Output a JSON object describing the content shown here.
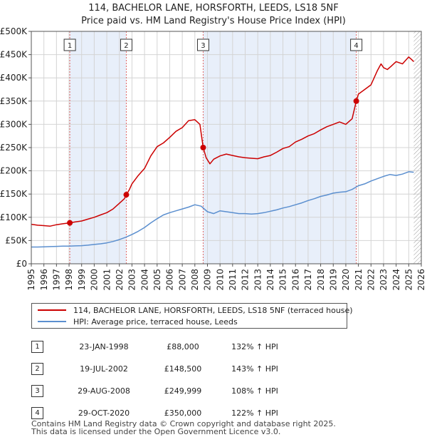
{
  "chart_data": {
    "type": "line",
    "title": "114, BACHELOR LANE, HORSFORTH, LEEDS, LS18 5NF",
    "subtitle": "Price paid vs. HM Land Registry's House Price Index (HPI)",
    "xlabel": "",
    "ylabel": "",
    "xlim": [
      1995,
      2026
    ],
    "ylim": [
      0,
      500000
    ],
    "x_ticks": [
      1995,
      1996,
      1997,
      1998,
      1999,
      2000,
      2001,
      2002,
      2003,
      2004,
      2005,
      2006,
      2007,
      2008,
      2009,
      2010,
      2011,
      2012,
      2013,
      2014,
      2015,
      2016,
      2017,
      2018,
      2019,
      2020,
      2021,
      2022,
      2023,
      2024,
      2025,
      2026
    ],
    "x_tick_labels": [
      "1995",
      "1996",
      "1997",
      "1998",
      "1999",
      "2000",
      "2001",
      "2002",
      "2003",
      "2004",
      "2005",
      "2006",
      "2007",
      "2008",
      "2009",
      "2010",
      "2011",
      "2012",
      "2013",
      "2014",
      "2015",
      "2016",
      "2017",
      "2018",
      "2019",
      "2020",
      "2021",
      "2022",
      "2023",
      "2024",
      "2025",
      "2026"
    ],
    "y_ticks": [
      0,
      50000,
      100000,
      150000,
      200000,
      250000,
      300000,
      350000,
      400000,
      450000,
      500000
    ],
    "y_tick_labels": [
      "£0",
      "£50K",
      "£100K",
      "£150K",
      "£200K",
      "£250K",
      "£300K",
      "£350K",
      "£400K",
      "£450K",
      "£500K"
    ],
    "grid": true,
    "shaded_periods": [
      [
        1998.06,
        2002.55
      ],
      [
        2008.66,
        2020.83
      ]
    ],
    "data_end": 2025.4,
    "series": [
      {
        "name": "114, BACHELOR LANE, HORSFORTH, LEEDS, LS18 5NF (terraced house)",
        "color": "#cc0000",
        "x": [
          1995.0,
          1995.5,
          1996.0,
          1996.5,
          1997.0,
          1997.5,
          1998.06,
          1998.5,
          1999.0,
          1999.5,
          2000.0,
          2000.5,
          2001.0,
          2001.5,
          2002.0,
          2002.4,
          2002.55,
          2002.8,
          2003.0,
          2003.5,
          2004.0,
          2004.5,
          2005.0,
          2005.5,
          2006.0,
          2006.5,
          2007.0,
          2007.5,
          2008.0,
          2008.4,
          2008.66,
          2008.9,
          2009.2,
          2009.5,
          2010.0,
          2010.5,
          2011.0,
          2011.5,
          2012.0,
          2012.5,
          2013.0,
          2013.5,
          2014.0,
          2014.5,
          2015.0,
          2015.5,
          2016.0,
          2016.5,
          2017.0,
          2017.5,
          2018.0,
          2018.5,
          2019.0,
          2019.5,
          2020.0,
          2020.5,
          2020.83,
          2021.0,
          2021.5,
          2022.0,
          2022.5,
          2022.8,
          2023.0,
          2023.3,
          2023.6,
          2024.0,
          2024.5,
          2025.0,
          2025.2,
          2025.4
        ],
        "values": [
          85000,
          83000,
          82000,
          81000,
          84000,
          86000,
          88000,
          90000,
          92000,
          96000,
          100000,
          105000,
          110000,
          118000,
          130000,
          140000,
          148500,
          160000,
          172000,
          190000,
          205000,
          232000,
          252000,
          260000,
          272000,
          285000,
          293000,
          308000,
          310000,
          300000,
          249999,
          228000,
          215000,
          225000,
          232000,
          236000,
          233000,
          230000,
          228000,
          227000,
          226000,
          230000,
          233000,
          240000,
          248000,
          252000,
          262000,
          268000,
          275000,
          280000,
          288000,
          295000,
          300000,
          305000,
          300000,
          312000,
          350000,
          365000,
          375000,
          385000,
          415000,
          430000,
          422000,
          418000,
          425000,
          435000,
          430000,
          445000,
          440000,
          435000
        ]
      },
      {
        "name": "HPI: Average price, terraced house, Leeds",
        "color": "#5b8fcf",
        "x": [
          1995.0,
          1995.5,
          1996.0,
          1996.5,
          1997.0,
          1997.5,
          1998.0,
          1998.5,
          1999.0,
          1999.5,
          2000.0,
          2000.5,
          2001.0,
          2001.5,
          2002.0,
          2002.5,
          2003.0,
          2003.5,
          2004.0,
          2004.5,
          2005.0,
          2005.5,
          2006.0,
          2006.5,
          2007.0,
          2007.5,
          2008.0,
          2008.5,
          2009.0,
          2009.5,
          2010.0,
          2010.5,
          2011.0,
          2011.5,
          2012.0,
          2012.5,
          2013.0,
          2013.5,
          2014.0,
          2014.5,
          2015.0,
          2015.5,
          2016.0,
          2016.5,
          2017.0,
          2017.5,
          2018.0,
          2018.5,
          2019.0,
          2019.5,
          2020.0,
          2020.5,
          2021.0,
          2021.5,
          2022.0,
          2022.5,
          2023.0,
          2023.5,
          2024.0,
          2024.5,
          2025.0,
          2025.4
        ],
        "values": [
          36000,
          36000,
          36500,
          37000,
          37500,
          38000,
          38000,
          38500,
          39000,
          40000,
          41500,
          43000,
          45000,
          48000,
          52000,
          57000,
          63000,
          70000,
          78000,
          88000,
          97000,
          105000,
          110000,
          114000,
          118000,
          122000,
          127000,
          124000,
          112000,
          108000,
          114000,
          112000,
          110000,
          108000,
          108000,
          107000,
          108000,
          110000,
          113000,
          116000,
          120000,
          123000,
          127000,
          131000,
          136000,
          140000,
          145000,
          148000,
          152000,
          154000,
          155000,
          160000,
          168000,
          172000,
          178000,
          183000,
          188000,
          192000,
          190000,
          193000,
          198000,
          197000
        ]
      }
    ],
    "markers": [
      {
        "label": "1",
        "x": 1998.06,
        "y": 88000
      },
      {
        "label": "2",
        "x": 2002.55,
        "y": 148500
      },
      {
        "label": "3",
        "x": 2008.66,
        "y": 249999
      },
      {
        "label": "4",
        "x": 2020.83,
        "y": 350000
      }
    ]
  },
  "legend": {
    "property_label": "114, BACHELOR LANE, HORSFORTH, LEEDS, LS18 5NF (terraced house)",
    "hpi_label": "HPI: Average price, terraced house, Leeds"
  },
  "sales": [
    {
      "num": "1",
      "date": "23-JAN-1998",
      "price": "£88,000",
      "hpi": "132% ↑ HPI"
    },
    {
      "num": "2",
      "date": "19-JUL-2002",
      "price": "£148,500",
      "hpi": "143% ↑ HPI"
    },
    {
      "num": "3",
      "date": "29-AUG-2008",
      "price": "£249,999",
      "hpi": "108% ↑ HPI"
    },
    {
      "num": "4",
      "date": "29-OCT-2020",
      "price": "£350,000",
      "hpi": "122% ↑ HPI"
    }
  ],
  "footer": {
    "line1": "Contains HM Land Registry data © Crown copyright and database right 2025.",
    "line2": "This data is licensed under the Open Government Licence v3.0."
  }
}
